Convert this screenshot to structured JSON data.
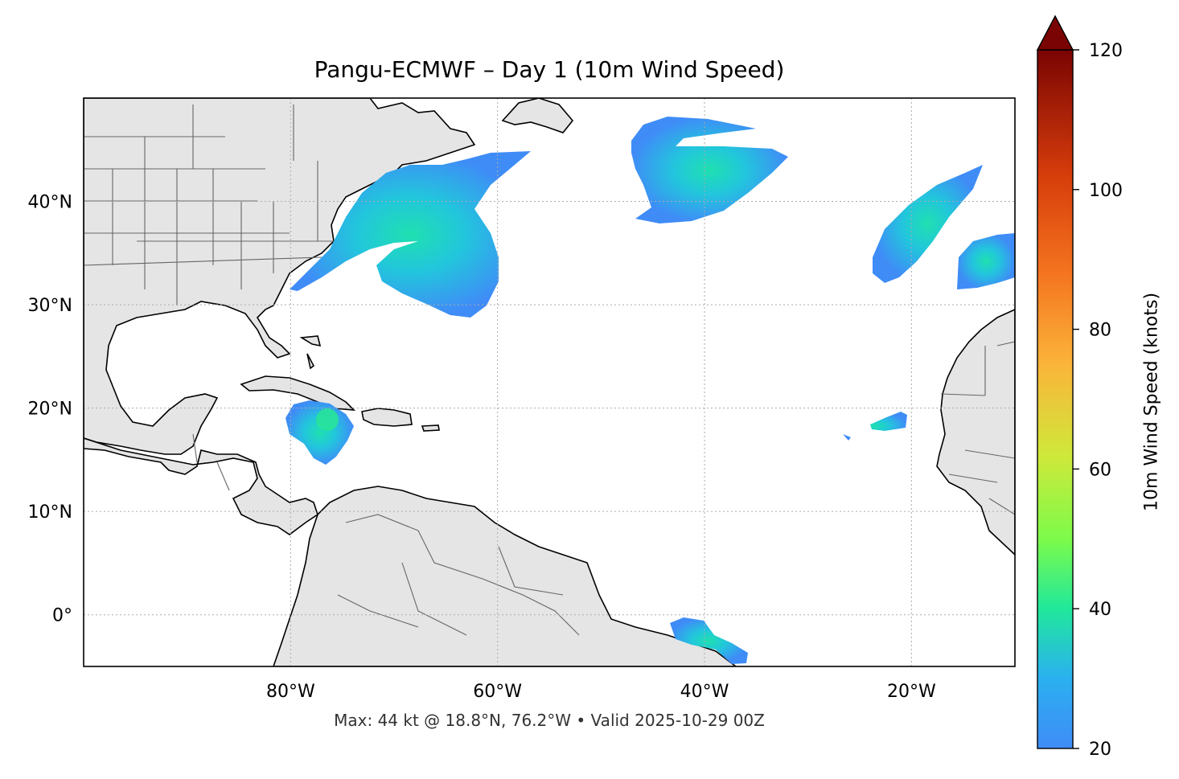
{
  "map": {
    "title": "Pangu-ECMWF – Day 1 (10m Wind Speed)",
    "footer": "Max: 44 kt @ 18.8°N, 76.2°W • Valid 2025-10-29 00Z",
    "extent": {
      "lon_min": -100,
      "lon_max": -10,
      "lat_min": -5,
      "lat_max": 50
    },
    "lat_ticks": [
      {
        "value": 40,
        "label": "40°N"
      },
      {
        "value": 30,
        "label": "30°N"
      },
      {
        "value": 20,
        "label": "20°N"
      },
      {
        "value": 10,
        "label": "10°N"
      },
      {
        "value": 0,
        "label": "0°"
      }
    ],
    "lon_ticks": [
      {
        "value": -80,
        "label": "80°W"
      },
      {
        "value": -60,
        "label": "60°W"
      },
      {
        "value": -40,
        "label": "40°W"
      },
      {
        "value": -20,
        "label": "20°W"
      }
    ],
    "gridlines": true,
    "land_color": "#e5e5e5",
    "ocean_color": "#ffffff",
    "colorbar": {
      "label": "10m Wind Speed (knots)",
      "min": 20,
      "max": 120,
      "extend": "max",
      "ticks": [
        "20",
        "40",
        "60",
        "80",
        "100",
        "120"
      ],
      "colormap": "turbo"
    },
    "max_point": {
      "value": 44,
      "unit": "kt",
      "lat": 18.8,
      "lon": -76.2
    }
  }
}
